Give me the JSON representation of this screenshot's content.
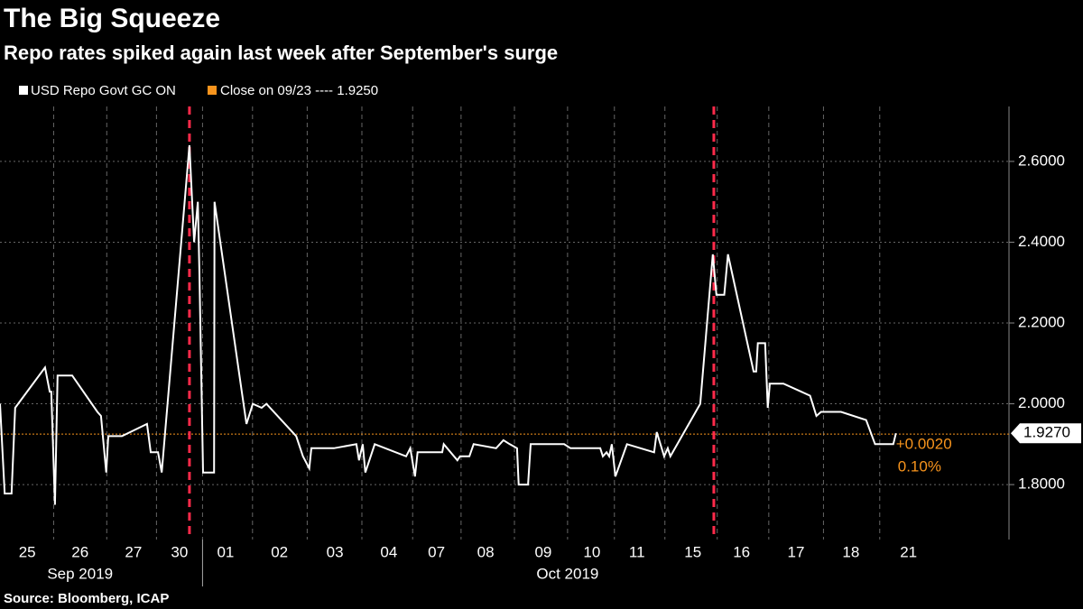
{
  "chart_data": {
    "type": "line",
    "title": "The Big Squeeze",
    "subtitle": "Repo rates spiked again last week after September's surge",
    "source": "Source: Bloomberg, ICAP",
    "series": [
      {
        "name": "USD Repo Govt GC ON",
        "color": "#ffffff",
        "x": [
          0,
          0.09,
          0.22,
          0.29,
          0.86,
          0.95,
          0.98,
          1.05,
          1.1,
          1.38,
          1.86,
          1.93,
          2.03,
          2.07,
          2.33,
          2.81,
          2.88,
          3.02,
          3.09,
          3.62,
          3.71,
          3.78,
          3.81,
          3.88,
          4.09,
          4.1,
          4.62,
          4.71,
          4.83,
          5.0,
          5.09,
          5.66,
          5.79,
          5.91,
          5.95,
          6.38,
          6.81,
          6.86,
          6.93,
          6.98,
          7.16,
          7.76,
          7.84,
          7.93,
          7.98,
          8.45,
          8.48,
          8.74,
          8.79,
          8.97,
          9.05,
          9.48,
          9.62,
          9.74,
          9.88,
          9.91,
          10.09,
          10.14,
          10.78,
          10.9,
          11.47,
          11.52,
          11.59,
          11.64,
          11.69,
          11.76,
          11.98,
          12.5,
          12.55,
          12.69,
          12.76,
          12.81,
          13.38,
          13.62,
          13.69,
          13.84,
          13.91,
          14.4,
          14.45,
          14.48,
          14.62,
          14.67,
          14.71,
          14.97,
          15.48,
          15.6,
          15.69,
          16.07,
          16.55,
          16.72,
          17.07,
          17.12
        ],
        "values": [
          2.0,
          1.778,
          1.778,
          1.99,
          2.09,
          2.03,
          2.03,
          1.75,
          2.07,
          2.07,
          1.98,
          1.97,
          1.83,
          1.92,
          1.92,
          1.95,
          1.88,
          1.88,
          1.83,
          2.64,
          2.4,
          2.5,
          2.33,
          1.83,
          1.83,
          2.5,
          2.03,
          1.95,
          2.0,
          1.99,
          2.0,
          1.92,
          1.87,
          1.84,
          1.89,
          1.89,
          1.9,
          1.86,
          1.9,
          1.83,
          1.9,
          1.87,
          1.89,
          1.82,
          1.88,
          1.88,
          1.9,
          1.86,
          1.87,
          1.87,
          1.9,
          1.89,
          1.91,
          1.9,
          1.89,
          1.8,
          1.8,
          1.9,
          1.9,
          1.89,
          1.89,
          1.87,
          1.88,
          1.87,
          1.9,
          1.82,
          1.9,
          1.88,
          1.93,
          1.87,
          1.89,
          1.87,
          2.0,
          2.37,
          2.27,
          2.27,
          2.37,
          2.08,
          2.08,
          2.15,
          2.15,
          1.99,
          2.05,
          2.05,
          2.02,
          1.97,
          1.98,
          1.98,
          1.96,
          1.9,
          1.9,
          1.927
        ]
      }
    ],
    "last_value_label": "1.9270",
    "change": "+0.0020",
    "change_pct": "0.10%",
    "reference": {
      "value": 1.925,
      "label": "Close on 09/23 ---- 1.9250",
      "color": "#f7941d"
    },
    "highlights": [
      3.62,
      13.64
    ],
    "highlight_color": "#ff2a4a",
    "months": [
      "Sep 2019",
      "Oct 2019"
    ],
    "xlim": [
      0,
      19.28
    ],
    "xticks": [
      {
        "value": 0.52,
        "label": "25"
      },
      {
        "value": 1.53,
        "label": "26"
      },
      {
        "value": 2.55,
        "label": "27"
      },
      {
        "value": 3.43,
        "label": "30"
      },
      {
        "value": 4.31,
        "label": "01"
      },
      {
        "value": 5.34,
        "label": "02"
      },
      {
        "value": 6.4,
        "label": "03"
      },
      {
        "value": 7.43,
        "label": "04"
      },
      {
        "value": 8.34,
        "label": "07"
      },
      {
        "value": 9.28,
        "label": "08"
      },
      {
        "value": 10.38,
        "label": "09"
      },
      {
        "value": 11.31,
        "label": "10"
      },
      {
        "value": 12.17,
        "label": "11"
      },
      {
        "value": 13.24,
        "label": "15"
      },
      {
        "value": 14.17,
        "label": "16"
      },
      {
        "value": 15.21,
        "label": "17"
      },
      {
        "value": 16.26,
        "label": "18"
      },
      {
        "value": 17.36,
        "label": "21"
      }
    ],
    "ylim": [
      1.664,
      2.736
    ],
    "yticks": [
      {
        "value": 1.8,
        "label": "1.8000"
      },
      {
        "value": 2.0,
        "label": "2.0000"
      },
      {
        "value": 2.2,
        "label": "2.2000"
      },
      {
        "value": 2.4,
        "label": "2.4000"
      },
      {
        "value": 2.6,
        "label": "2.6000"
      }
    ],
    "grid": true
  }
}
